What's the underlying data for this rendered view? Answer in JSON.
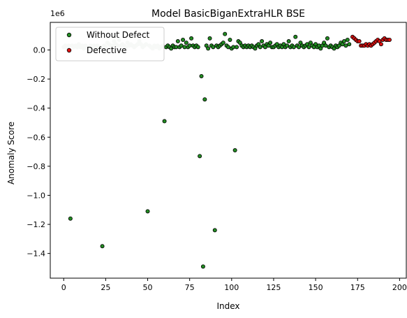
{
  "chart_data": {
    "type": "scatter",
    "title": "Model BasicBiganExtraHLR BSE",
    "xlabel": "Index",
    "ylabel": "Anomaly Score",
    "y_scale_label": "1e6",
    "xlim": [
      -8,
      204
    ],
    "ylim": [
      -1.57,
      0.19
    ],
    "x_ticks": [
      0,
      25,
      50,
      75,
      100,
      125,
      150,
      175,
      200
    ],
    "x_tick_labels": [
      "0",
      "25",
      "50",
      "75",
      "100",
      "125",
      "150",
      "175",
      "200"
    ],
    "y_ticks": [
      -1.4,
      -1.2,
      -1.0,
      -0.8,
      -0.6,
      -0.4,
      -0.2,
      0.0
    ],
    "y_tick_labels": [
      "−1.4",
      "−1.2",
      "−1.0",
      "−0.8",
      "−0.6",
      "−0.4",
      "−0.2",
      "0.0"
    ],
    "grid": false,
    "legend": {
      "placement": "top-left"
    },
    "series": [
      {
        "name": "Without Defect",
        "color": "#228B22",
        "marker_edge": "#000000",
        "points": [
          [
            61,
            0.02
          ],
          [
            62,
            0.03
          ],
          [
            63,
            0.02
          ],
          [
            64,
            0.01
          ],
          [
            65,
            0.03
          ],
          [
            66,
            0.02
          ],
          [
            67,
            0.02
          ],
          [
            68,
            0.06
          ],
          [
            69,
            0.02
          ],
          [
            70,
            0.03
          ],
          [
            71,
            0.07
          ],
          [
            72,
            0.02
          ],
          [
            73,
            0.05
          ],
          [
            74,
            0.02
          ],
          [
            75,
            0.03
          ],
          [
            76,
            0.08
          ],
          [
            77,
            0.03
          ],
          [
            78,
            0.02
          ],
          [
            79,
            0.03
          ],
          [
            80,
            0.02
          ],
          [
            81,
            -0.73
          ],
          [
            82,
            -0.18
          ],
          [
            83,
            -1.49
          ],
          [
            84,
            -0.34
          ],
          [
            85,
            0.03
          ],
          [
            86,
            0.01
          ],
          [
            87,
            0.08
          ],
          [
            88,
            0.03
          ],
          [
            89,
            0.02
          ],
          [
            90,
            -1.24
          ],
          [
            91,
            0.03
          ],
          [
            92,
            0.02
          ],
          [
            93,
            0.03
          ],
          [
            94,
            0.04
          ],
          [
            95,
            0.05
          ],
          [
            96,
            0.11
          ],
          [
            97,
            0.03
          ],
          [
            98,
            0.02
          ],
          [
            99,
            0.07
          ],
          [
            100,
            0.01
          ],
          [
            101,
            0.02
          ],
          [
            102,
            -0.69
          ],
          [
            103,
            0.02
          ],
          [
            104,
            0.06
          ],
          [
            105,
            0.05
          ],
          [
            106,
            0.03
          ],
          [
            107,
            0.02
          ],
          [
            108,
            0.03
          ],
          [
            109,
            0.02
          ],
          [
            110,
            0.03
          ],
          [
            111,
            0.02
          ],
          [
            112,
            0.03
          ],
          [
            113,
            0.02
          ],
          [
            114,
            0.01
          ],
          [
            115,
            0.03
          ],
          [
            116,
            0.04
          ],
          [
            117,
            0.02
          ],
          [
            118,
            0.06
          ],
          [
            119,
            0.03
          ],
          [
            120,
            0.02
          ],
          [
            121,
            0.04
          ],
          [
            122,
            0.03
          ],
          [
            123,
            0.05
          ],
          [
            124,
            0.02
          ],
          [
            125,
            0.02
          ],
          [
            126,
            0.03
          ],
          [
            127,
            0.04
          ],
          [
            128,
            0.02
          ],
          [
            129,
            0.03
          ],
          [
            130,
            0.02
          ],
          [
            131,
            0.04
          ],
          [
            132,
            0.02
          ],
          [
            133,
            0.03
          ],
          [
            134,
            0.06
          ],
          [
            135,
            0.02
          ],
          [
            136,
            0.03
          ],
          [
            137,
            0.02
          ],
          [
            138,
            0.09
          ],
          [
            139,
            0.03
          ],
          [
            140,
            0.02
          ],
          [
            141,
            0.05
          ],
          [
            142,
            0.03
          ],
          [
            143,
            0.02
          ],
          [
            144,
            0.03
          ],
          [
            145,
            0.04
          ],
          [
            146,
            0.02
          ],
          [
            147,
            0.05
          ],
          [
            148,
            0.03
          ],
          [
            149,
            0.02
          ],
          [
            150,
            0.04
          ],
          [
            151,
            0.02
          ],
          [
            152,
            0.03
          ],
          [
            153,
            0.01
          ],
          [
            154,
            0.03
          ],
          [
            155,
            0.05
          ],
          [
            156,
            0.03
          ],
          [
            157,
            0.08
          ],
          [
            158,
            0.02
          ],
          [
            159,
            0.03
          ],
          [
            160,
            0.02
          ],
          [
            161,
            0.01
          ],
          [
            162,
            0.03
          ],
          [
            163,
            0.02
          ],
          [
            164,
            0.03
          ],
          [
            165,
            0.05
          ],
          [
            166,
            0.04
          ],
          [
            167,
            0.06
          ],
          [
            168,
            0.03
          ],
          [
            169,
            0.07
          ],
          [
            170,
            0.04
          ],
          [
            4,
            -1.16
          ],
          [
            23,
            -1.35
          ],
          [
            50,
            -1.11
          ],
          [
            60,
            -0.49
          ]
        ]
      },
      {
        "name": "Defective",
        "color": "#DD1111",
        "marker_edge": "#000000",
        "points": [
          [
            172,
            0.09
          ],
          [
            173,
            0.08
          ],
          [
            174,
            0.07
          ],
          [
            175,
            0.06
          ],
          [
            176,
            0.06
          ],
          [
            177,
            0.03
          ],
          [
            178,
            0.03
          ],
          [
            179,
            0.03
          ],
          [
            180,
            0.04
          ],
          [
            181,
            0.03
          ],
          [
            182,
            0.04
          ],
          [
            183,
            0.03
          ],
          [
            184,
            0.04
          ],
          [
            185,
            0.05
          ],
          [
            186,
            0.06
          ],
          [
            187,
            0.07
          ],
          [
            188,
            0.06
          ],
          [
            189,
            0.04
          ],
          [
            190,
            0.07
          ],
          [
            191,
            0.08
          ],
          [
            192,
            0.07
          ],
          [
            193,
            0.07
          ],
          [
            194,
            0.07
          ]
        ]
      },
      {
        "name": "",
        "color": "#C8D3C8",
        "marker_edge": "#C8D3C8",
        "points": [
          [
            0,
            0.02
          ],
          [
            1,
            0.03
          ],
          [
            2,
            0.02
          ],
          [
            3,
            0.03
          ],
          [
            5,
            0.03
          ],
          [
            6,
            0.02
          ],
          [
            7,
            0.03
          ],
          [
            8,
            0.02
          ],
          [
            9,
            0.04
          ],
          [
            10,
            0.02
          ],
          [
            11,
            0.03
          ],
          [
            12,
            0.01
          ],
          [
            13,
            0.03
          ],
          [
            14,
            0.02
          ],
          [
            15,
            0.02
          ],
          [
            16,
            0.03
          ],
          [
            17,
            0.02
          ],
          [
            18,
            0.03
          ],
          [
            19,
            0.02
          ],
          [
            20,
            0.03
          ],
          [
            21,
            0.02
          ],
          [
            22,
            0.02
          ],
          [
            24,
            0.03
          ],
          [
            25,
            0.02
          ],
          [
            26,
            0.05
          ],
          [
            27,
            0.04
          ],
          [
            28,
            0.02
          ],
          [
            29,
            0.03
          ],
          [
            30,
            0.06
          ],
          [
            31,
            0.04
          ],
          [
            32,
            0.03
          ],
          [
            33,
            0.07
          ],
          [
            34,
            0.03
          ],
          [
            35,
            0.04
          ],
          [
            36,
            0.03
          ],
          [
            37,
            0.02
          ],
          [
            38,
            0.05
          ],
          [
            39,
            0.03
          ],
          [
            40,
            0.04
          ],
          [
            41,
            0.03
          ],
          [
            42,
            0.02
          ],
          [
            43,
            0.03
          ],
          [
            44,
            0.04
          ],
          [
            45,
            0.06
          ],
          [
            46,
            0.04
          ],
          [
            47,
            0.02
          ],
          [
            48,
            0.03
          ],
          [
            49,
            0.04
          ],
          [
            51,
            0.03
          ],
          [
            52,
            0.02
          ],
          [
            53,
            0.01
          ],
          [
            54,
            0.03
          ],
          [
            55,
            0.02
          ],
          [
            56,
            0.03
          ],
          [
            57,
            0.01
          ],
          [
            58,
            0.02
          ],
          [
            59,
            0.03
          ]
        ]
      }
    ]
  }
}
